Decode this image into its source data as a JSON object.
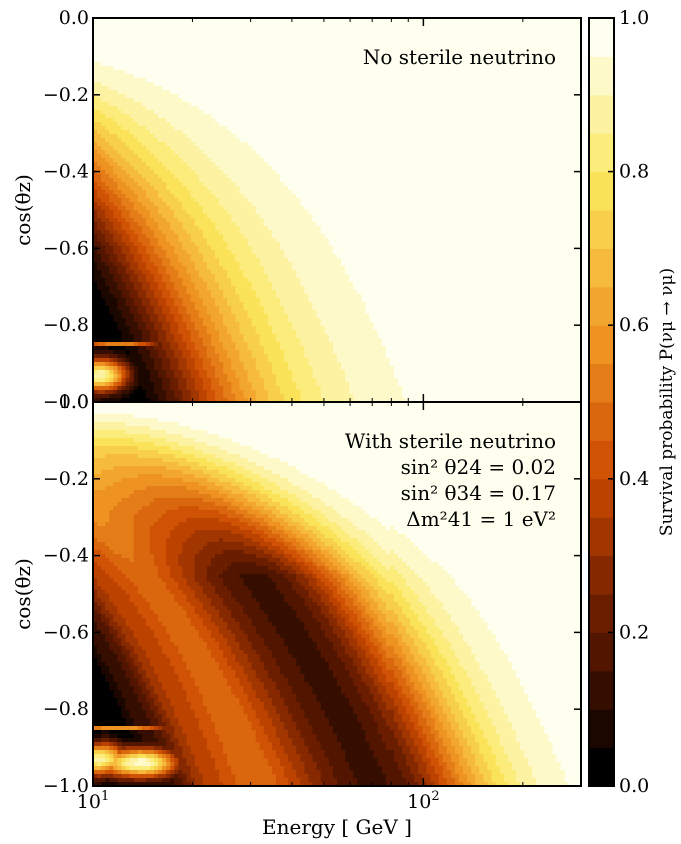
{
  "chart_data": {
    "type": "heatmap",
    "colorbar": {
      "label": "Survival probability P(νμ → νμ)",
      "range": [
        0.0,
        1.0
      ],
      "ticks": [
        0.0,
        0.2,
        0.4,
        0.6,
        0.8,
        1.0
      ],
      "tick_labels": [
        "0.0",
        "0.2",
        "0.4",
        "0.6",
        "0.8",
        "1.0"
      ],
      "levels": 20,
      "colormap": "afmhot",
      "colors": {
        "0.0": "#000000",
        "0.2": "#661a00",
        "0.4": "#cc4a00",
        "0.6": "#f29a26",
        "0.8": "#fbe75c",
        "1.0": "#fffff0"
      }
    },
    "xaxis": {
      "label": "Energy [ GeV ]",
      "scale": "log",
      "range": [
        10,
        300
      ],
      "major_ticks": [
        10,
        100
      ],
      "major_tick_labels": [
        "10",
        "10"
      ],
      "major_tick_exponents": [
        "1",
        "2"
      ]
    },
    "panels": [
      {
        "id": "no-sterile",
        "ylabel": "cos(θz)",
        "yrange": [
          -1.0,
          0.0
        ],
        "yticks": [
          0.0,
          -0.2,
          -0.4,
          -0.6,
          -0.8,
          -1.0
        ],
        "ytick_labels": [
          "0.0",
          "−0.2",
          "−0.4",
          "−0.6",
          "−0.8",
          "−1.0"
        ],
        "annotation": [
          "No sterile neutrino"
        ]
      },
      {
        "id": "with-sterile",
        "ylabel": "cos(θz)",
        "yrange": [
          -1.0,
          0.0
        ],
        "yticks": [
          0.0,
          -0.2,
          -0.4,
          -0.6,
          -0.8,
          -1.0
        ],
        "ytick_labels": [
          "0.0",
          "−0.2",
          "−0.4",
          "−0.6",
          "−0.8",
          "−1.0"
        ],
        "annotation": [
          "With sterile neutrino",
          "sin² θ24 = 0.02",
          "sin² θ34 = 0.17",
          "Δm²41 = 1 eV²"
        ],
        "parameters": {
          "sin2_theta24": 0.02,
          "sin2_theta34": 0.17,
          "dm2_41_eV2": 1
        }
      }
    ]
  }
}
